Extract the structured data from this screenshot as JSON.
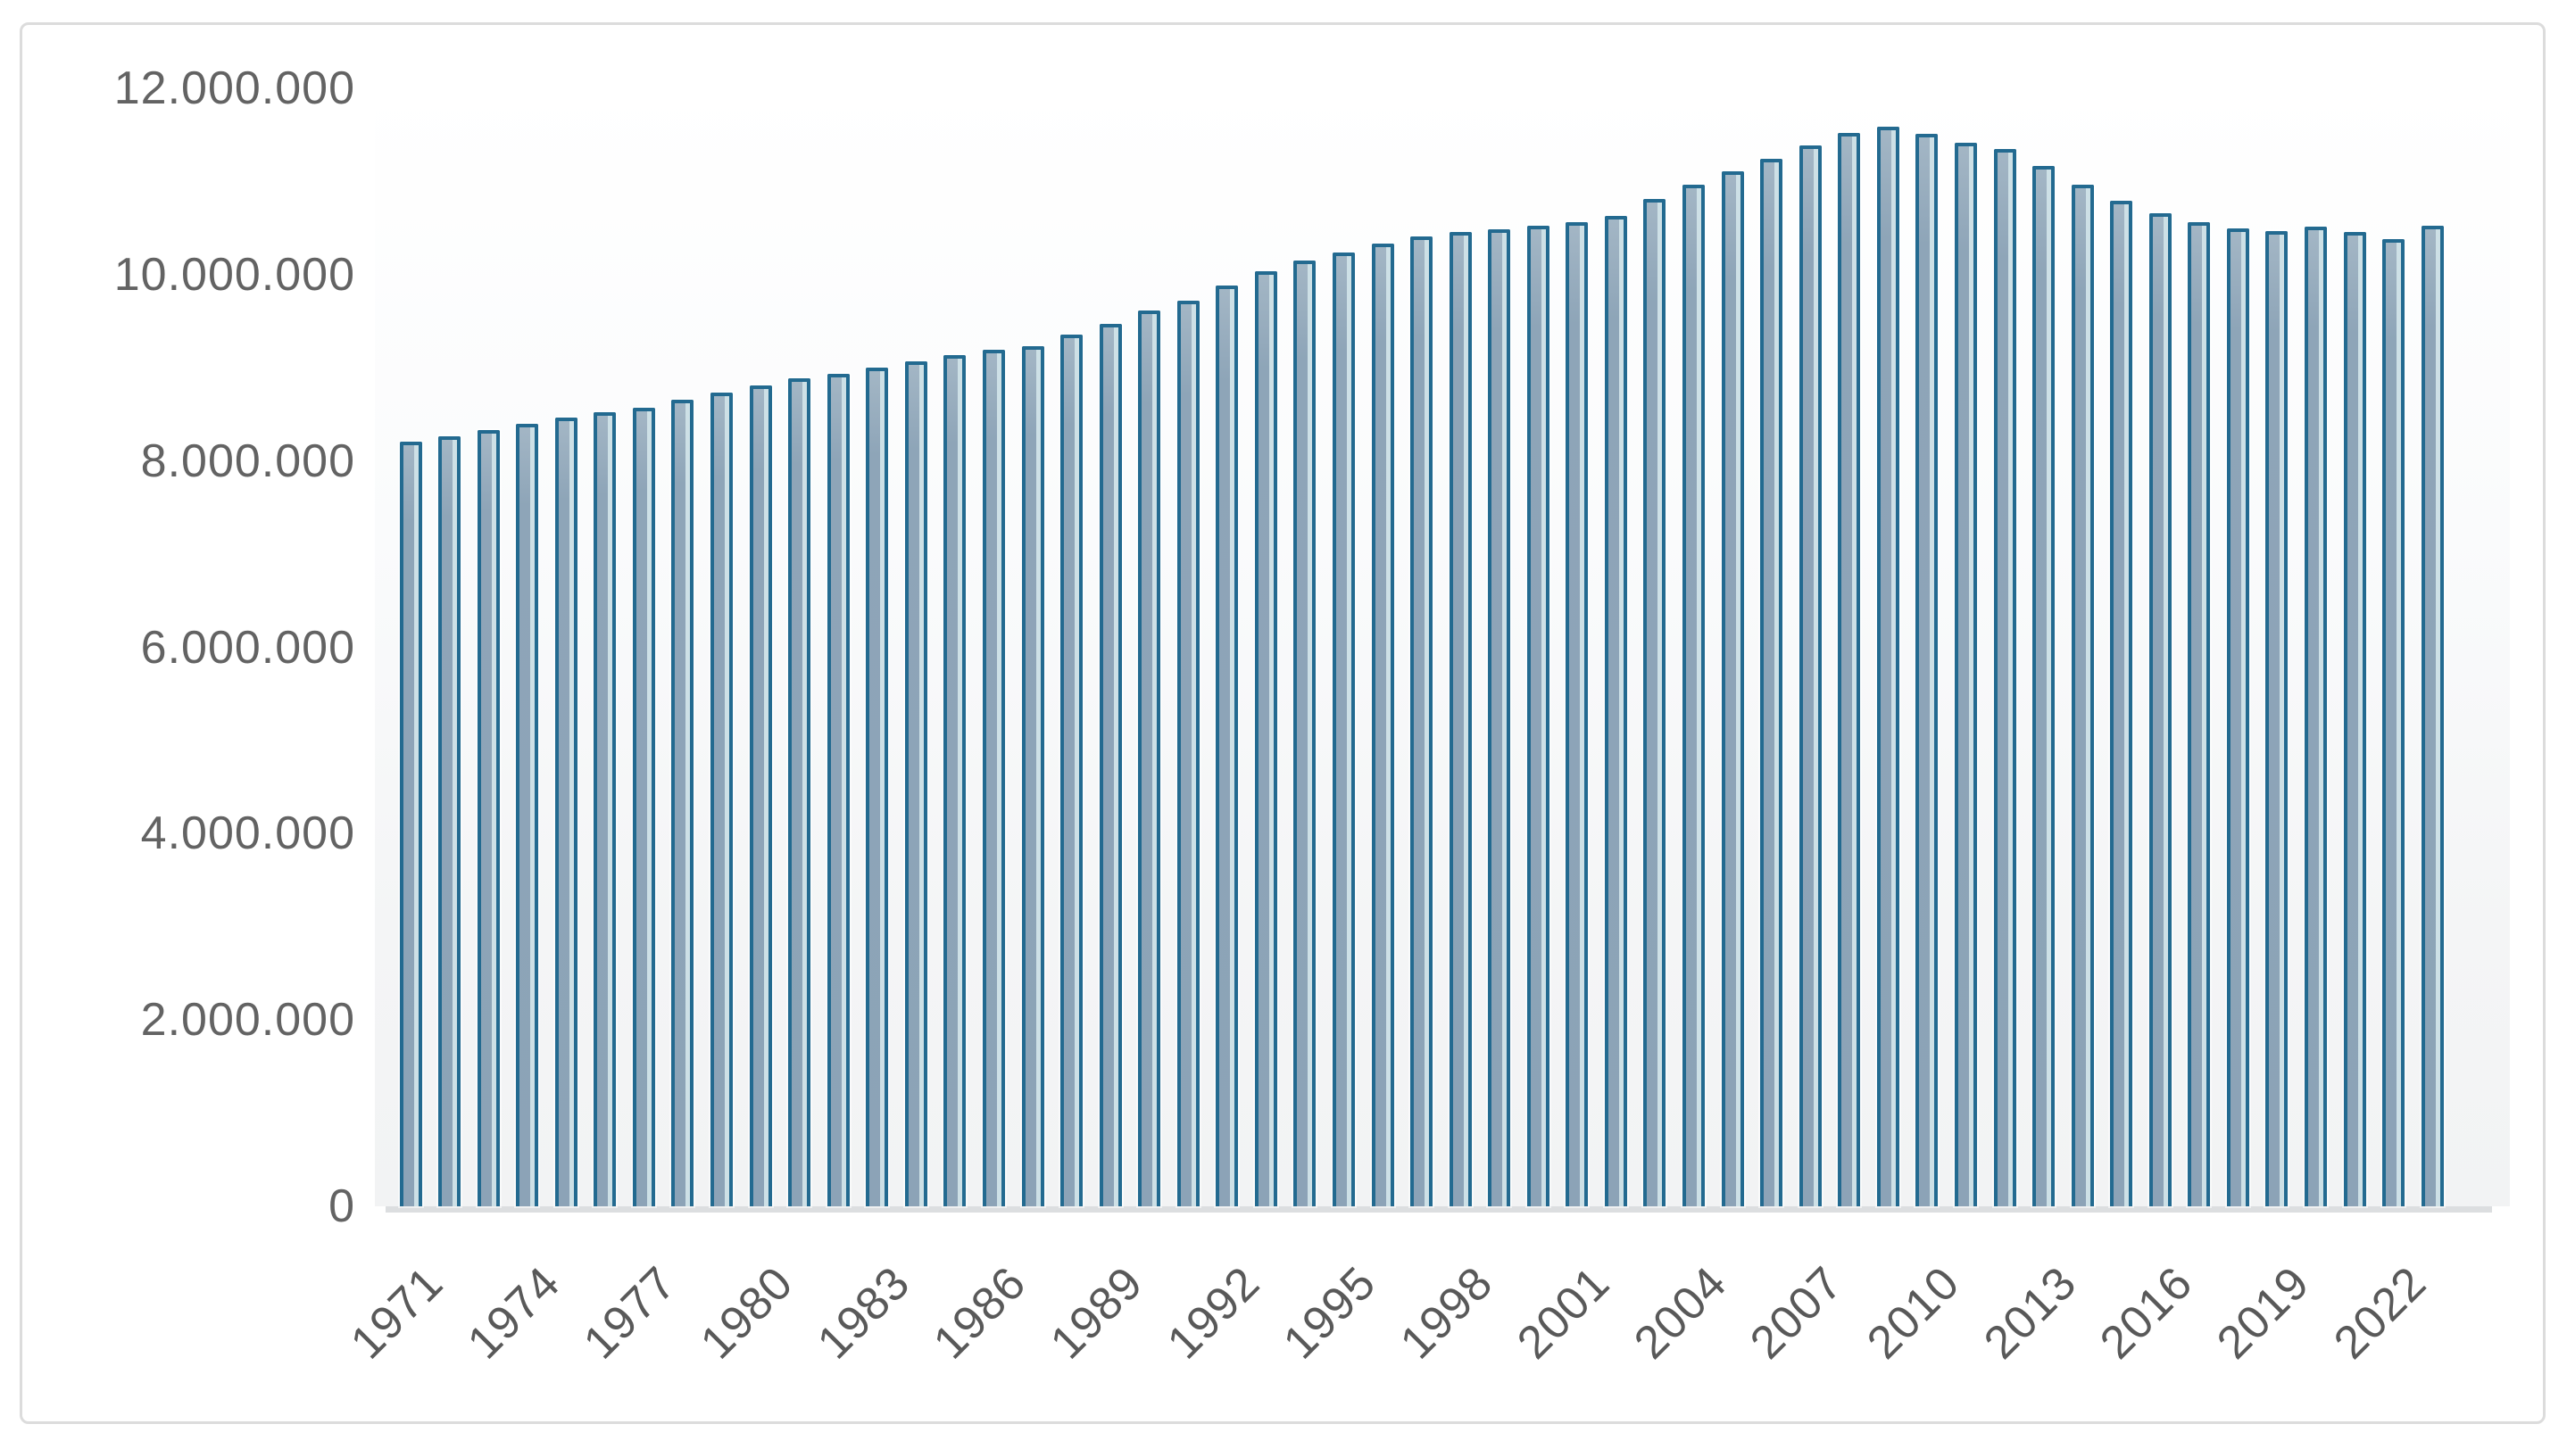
{
  "page": {
    "frame_border_color": "#dcdcdc",
    "background": "#ffffff"
  },
  "chart_data": {
    "type": "bar",
    "grid": false,
    "legend": false,
    "ylim": [
      0,
      12000000
    ],
    "x": [
      1971,
      1972,
      1973,
      1974,
      1975,
      1976,
      1977,
      1978,
      1979,
      1980,
      1981,
      1982,
      1983,
      1984,
      1985,
      1986,
      1987,
      1988,
      1989,
      1990,
      1991,
      1992,
      1993,
      1994,
      1995,
      1996,
      1997,
      1998,
      1999,
      2000,
      2001,
      2002,
      2003,
      2004,
      2005,
      2006,
      2007,
      2008,
      2009,
      2010,
      2011,
      2012,
      2013,
      2014,
      2015,
      2016,
      2017,
      2018,
      2019,
      2020,
      2021,
      2022,
      2023
    ],
    "values": [
      8210000,
      8270000,
      8330000,
      8400000,
      8470000,
      8520000,
      8570000,
      8660000,
      8730000,
      8810000,
      8890000,
      8940000,
      9000000,
      9070000,
      9140000,
      9190000,
      9230000,
      9360000,
      9470000,
      9620000,
      9720000,
      9880000,
      10040000,
      10150000,
      10240000,
      10330000,
      10410000,
      10460000,
      10490000,
      10530000,
      10560000,
      10630000,
      10810000,
      10970000,
      11110000,
      11240000,
      11390000,
      11520000,
      11590000,
      11510000,
      11420000,
      11350000,
      11170000,
      10970000,
      10790000,
      10660000,
      10560000,
      10500000,
      10470000,
      10520000,
      10460000,
      10380000,
      10530000
    ],
    "x_tick_every": 3,
    "x_tick_labels": [
      "1971",
      "1974",
      "1977",
      "1980",
      "1983",
      "1986",
      "1989",
      "1992",
      "1995",
      "1998",
      "2001",
      "2004",
      "2007",
      "2010",
      "2013",
      "2016",
      "2019",
      "2022"
    ],
    "y_ticks": [
      {
        "value": 0,
        "label": "0"
      },
      {
        "value": 2000000,
        "label": "2.000.000"
      },
      {
        "value": 4000000,
        "label": "4.000.000"
      },
      {
        "value": 6000000,
        "label": "6.000.000"
      },
      {
        "value": 8000000,
        "label": "8.000.000"
      },
      {
        "value": 10000000,
        "label": "10.000.000"
      },
      {
        "value": 12000000,
        "label": "12.000.000"
      }
    ],
    "colors": {
      "bar_fill": "#8ea5b8",
      "bar_border": "#236a90",
      "bar_inner_highlight": "#cde0e6",
      "axis_line": "#dcdee0",
      "tick_label": "#5e5e5e"
    }
  }
}
